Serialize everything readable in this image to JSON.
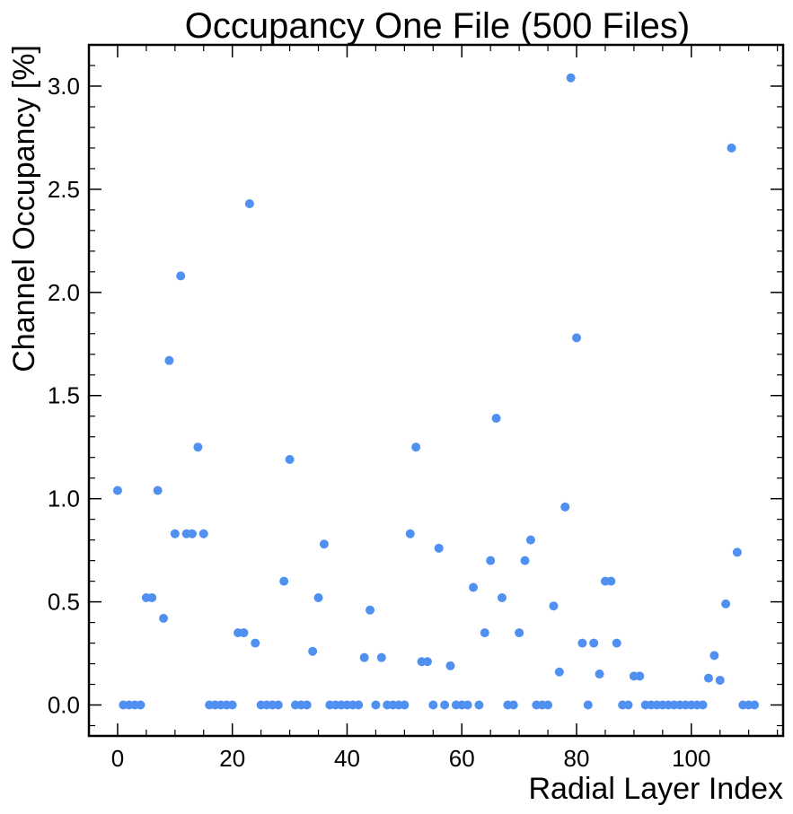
{
  "chart_data": {
    "type": "scatter",
    "title": "Occupancy One File (500 Files)",
    "xlabel": "Radial Layer Index",
    "ylabel": "Channel Occupancy [%]",
    "xlim": [
      -5,
      116
    ],
    "ylim": [
      -0.15,
      3.2
    ],
    "xticks": [
      0,
      20,
      40,
      60,
      80,
      100
    ],
    "yticks": [
      0.0,
      0.5,
      1.0,
      1.5,
      2.0,
      2.5,
      3.0
    ],
    "xtick_labels": [
      "0",
      "20",
      "40",
      "60",
      "80",
      "100"
    ],
    "ytick_labels": [
      "0.0",
      "0.5",
      "1.0",
      "1.5",
      "2.0",
      "2.5",
      "3.0"
    ],
    "grid": false,
    "marker_color": "#5090f0",
    "x": [
      0,
      1,
      2,
      3,
      4,
      5,
      6,
      7,
      8,
      9,
      10,
      11,
      12,
      13,
      14,
      15,
      16,
      17,
      18,
      19,
      20,
      21,
      22,
      23,
      24,
      25,
      26,
      27,
      28,
      29,
      30,
      31,
      32,
      33,
      34,
      35,
      36,
      37,
      38,
      39,
      40,
      41,
      42,
      43,
      44,
      45,
      46,
      47,
      48,
      49,
      50,
      51,
      52,
      53,
      54,
      55,
      56,
      57,
      58,
      59,
      60,
      61,
      62,
      63,
      64,
      65,
      66,
      67,
      68,
      69,
      70,
      71,
      72,
      73,
      74,
      75,
      76,
      77,
      78,
      79,
      80,
      81,
      82,
      83,
      84,
      85,
      86,
      87,
      88,
      89,
      90,
      91,
      92,
      93,
      94,
      95,
      96,
      97,
      98,
      99,
      100,
      101,
      102,
      103,
      104,
      105,
      106,
      107,
      108,
      109,
      110,
      111
    ],
    "y": [
      1.04,
      0.0,
      0.0,
      0.0,
      0.0,
      0.52,
      0.52,
      1.04,
      0.42,
      1.67,
      0.83,
      2.08,
      0.83,
      0.83,
      1.25,
      0.83,
      0.0,
      0.0,
      0.0,
      0.0,
      0.0,
      0.35,
      0.35,
      2.43,
      0.3,
      0.0,
      0.0,
      0.0,
      0.0,
      0.6,
      1.19,
      0.0,
      0.0,
      0.0,
      0.26,
      0.52,
      0.78,
      0.0,
      0.0,
      0.0,
      0.0,
      0.0,
      0.0,
      0.23,
      0.46,
      0.0,
      0.23,
      0.0,
      0.0,
      0.0,
      0.0,
      0.83,
      1.25,
      0.21,
      0.21,
      0.0,
      0.76,
      0.0,
      0.19,
      0.0,
      0.0,
      0.0,
      0.57,
      0.0,
      0.35,
      0.7,
      1.39,
      0.52,
      0.0,
      0.0,
      0.35,
      0.7,
      0.8,
      0.0,
      0.0,
      0.0,
      0.48,
      0.16,
      0.96,
      3.04,
      1.78,
      0.3,
      0.0,
      0.3,
      0.15,
      0.6,
      0.6,
      0.3,
      0.0,
      0.0,
      0.14,
      0.14,
      0.0,
      0.0,
      0.0,
      0.0,
      0.0,
      0.0,
      0.0,
      0.0,
      0.0,
      0.0,
      0.0,
      0.13,
      0.24,
      0.12,
      0.49,
      2.7,
      0.74,
      0.0,
      0.0,
      0.0
    ]
  }
}
